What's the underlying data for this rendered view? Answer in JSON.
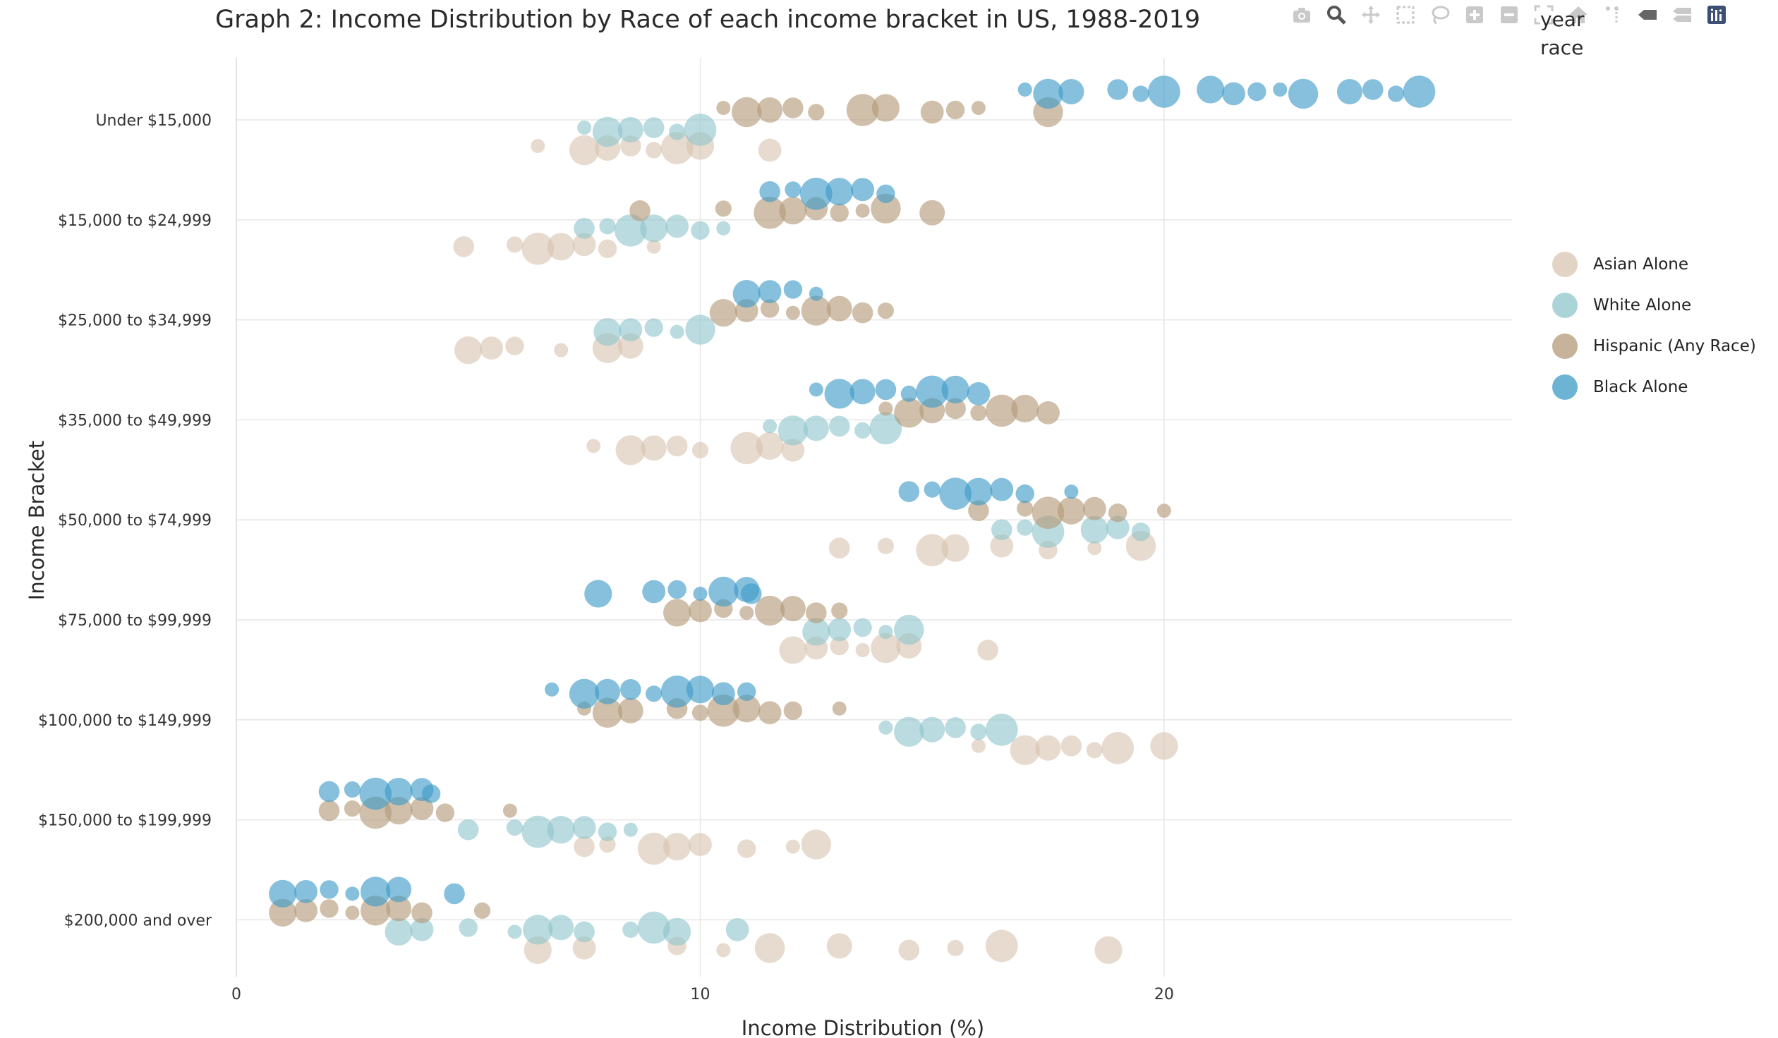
{
  "chart_data": {
    "type": "scatter",
    "title": "Graph 2: Income Distribution by Race of each income bracket in US, 1988-2019",
    "xlabel": "Income Distribution (%)",
    "ylabel": "Income Bracket",
    "xlim": [
      0,
      27.5
    ],
    "x_ticks": [
      "0",
      "10",
      "20"
    ],
    "categories": [
      "Under $15,000",
      "$15,000 to $24,999",
      "$25,000 to $34,999",
      "$35,000 to $49,999",
      "$50,000 to $74,999",
      "$75,000 to $99,999",
      "$100,000 to $149,999",
      "$150,000 to $199,999",
      "$200,000 and over"
    ],
    "grid": true,
    "legend_title": "year\nrace",
    "legend_position": "right",
    "size_note": "marker size varies by year",
    "series": [
      {
        "name": "Asian Alone",
        "color": "#d8c4b0",
        "values": [
          [
            6.5,
            7.5,
            8,
            8.5,
            9,
            9.5,
            10,
            11.5
          ],
          [
            4.9,
            6,
            6.5,
            7,
            7.5,
            8,
            9
          ],
          [
            5,
            5.5,
            6,
            7,
            8,
            8.5
          ],
          [
            7.7,
            8.5,
            9,
            9.5,
            10,
            11,
            11.5,
            12
          ],
          [
            13,
            14,
            15,
            15.5,
            16.5,
            17.5,
            18.5,
            19.5
          ],
          [
            12,
            12.5,
            13,
            13.5,
            14,
            14.5,
            16.2
          ],
          [
            16,
            17,
            17.5,
            18,
            18.5,
            19,
            20
          ],
          [
            7.5,
            8,
            9,
            9.5,
            10,
            11,
            12,
            12.5
          ],
          [
            6.5,
            7.5,
            9.5,
            10.5,
            11.5,
            13,
            14.5,
            15.5,
            16.5,
            18.8
          ]
        ]
      },
      {
        "name": "White Alone",
        "color": "#8fc5cc",
        "values": [
          [
            7.5,
            8,
            8.5,
            9,
            9.5,
            10
          ],
          [
            7.5,
            8,
            8.5,
            9,
            9.5,
            10,
            10.5
          ],
          [
            8,
            8.5,
            9,
            9.5,
            10
          ],
          [
            11.5,
            12,
            12.5,
            13,
            13.5,
            14
          ],
          [
            16.5,
            17,
            17.5,
            18.5,
            19,
            19.5
          ],
          [
            12.5,
            13,
            13.5,
            14,
            14.5
          ],
          [
            14,
            14.5,
            15,
            15.5,
            16,
            16.5
          ],
          [
            5,
            6,
            6.5,
            7,
            7.5,
            8,
            8.5
          ],
          [
            3.5,
            4,
            5,
            6,
            6.5,
            7,
            7.5,
            8.5,
            9,
            9.5,
            10.8
          ]
        ]
      },
      {
        "name": "Hispanic (Any Race)",
        "color": "#b39a78",
        "values": [
          [
            10.5,
            11,
            11.5,
            12,
            12.5,
            13.5,
            14,
            15,
            15.5,
            16,
            17.5
          ],
          [
            8.7,
            10.5,
            11.5,
            12,
            12.5,
            13,
            13.5,
            14,
            15
          ],
          [
            10.5,
            11,
            11.5,
            12,
            12.5,
            13,
            13.5,
            14
          ],
          [
            14,
            14.5,
            15,
            15.5,
            16,
            16.5,
            17,
            17.5
          ],
          [
            16,
            17,
            17.5,
            18,
            18.5,
            19,
            20
          ],
          [
            9.5,
            10,
            10.5,
            11,
            11.5,
            12,
            12.5,
            13
          ],
          [
            7.5,
            8,
            8.5,
            9.5,
            10,
            10.5,
            11,
            11.5,
            12,
            13
          ],
          [
            2,
            2.5,
            3,
            3.5,
            4,
            4.5,
            5.9
          ],
          [
            1,
            1.5,
            2,
            2.5,
            3,
            3.5,
            4,
            5.3
          ]
        ]
      },
      {
        "name": "Black Alone",
        "color": "#3b99c6",
        "values": [
          [
            17,
            17.5,
            18,
            19,
            19.5,
            20,
            21,
            21.5,
            22,
            22.5,
            23,
            24,
            24.5,
            25,
            25.5
          ],
          [
            11.5,
            12,
            12.5,
            13,
            13.5,
            14
          ],
          [
            11,
            11.5,
            12,
            12.5
          ],
          [
            12.5,
            13,
            13.5,
            14,
            14.5,
            15,
            15.5,
            16
          ],
          [
            14.5,
            15,
            15.5,
            16,
            16.5,
            17,
            18
          ],
          [
            7.8,
            9,
            9.5,
            10,
            10.5,
            11,
            11.1
          ],
          [
            6.8,
            7.5,
            8,
            8.5,
            9,
            9.5,
            10,
            10.5,
            11
          ],
          [
            2,
            2.5,
            3,
            3.5,
            4,
            4.2
          ],
          [
            1,
            1.5,
            2,
            2.5,
            3,
            3.5,
            4.7
          ]
        ]
      }
    ]
  },
  "legend_items": [
    {
      "label": "Asian Alone",
      "color": "#d8c4b0"
    },
    {
      "label": "White Alone",
      "color": "#8fc5cc"
    },
    {
      "label": "Hispanic (Any Race)",
      "color": "#b39a78"
    },
    {
      "label": "Black Alone",
      "color": "#3b99c6"
    }
  ],
  "toolbar_icons": [
    "camera-icon",
    "zoom-icon",
    "pan-icon",
    "box-select-icon",
    "lasso-icon",
    "zoom-in-icon",
    "zoom-out-icon",
    "autoscale-icon",
    "reset-axes-icon",
    "spike-lines-icon",
    "hover-closest-icon",
    "hover-compare-icon",
    "plotly-logo-icon"
  ]
}
